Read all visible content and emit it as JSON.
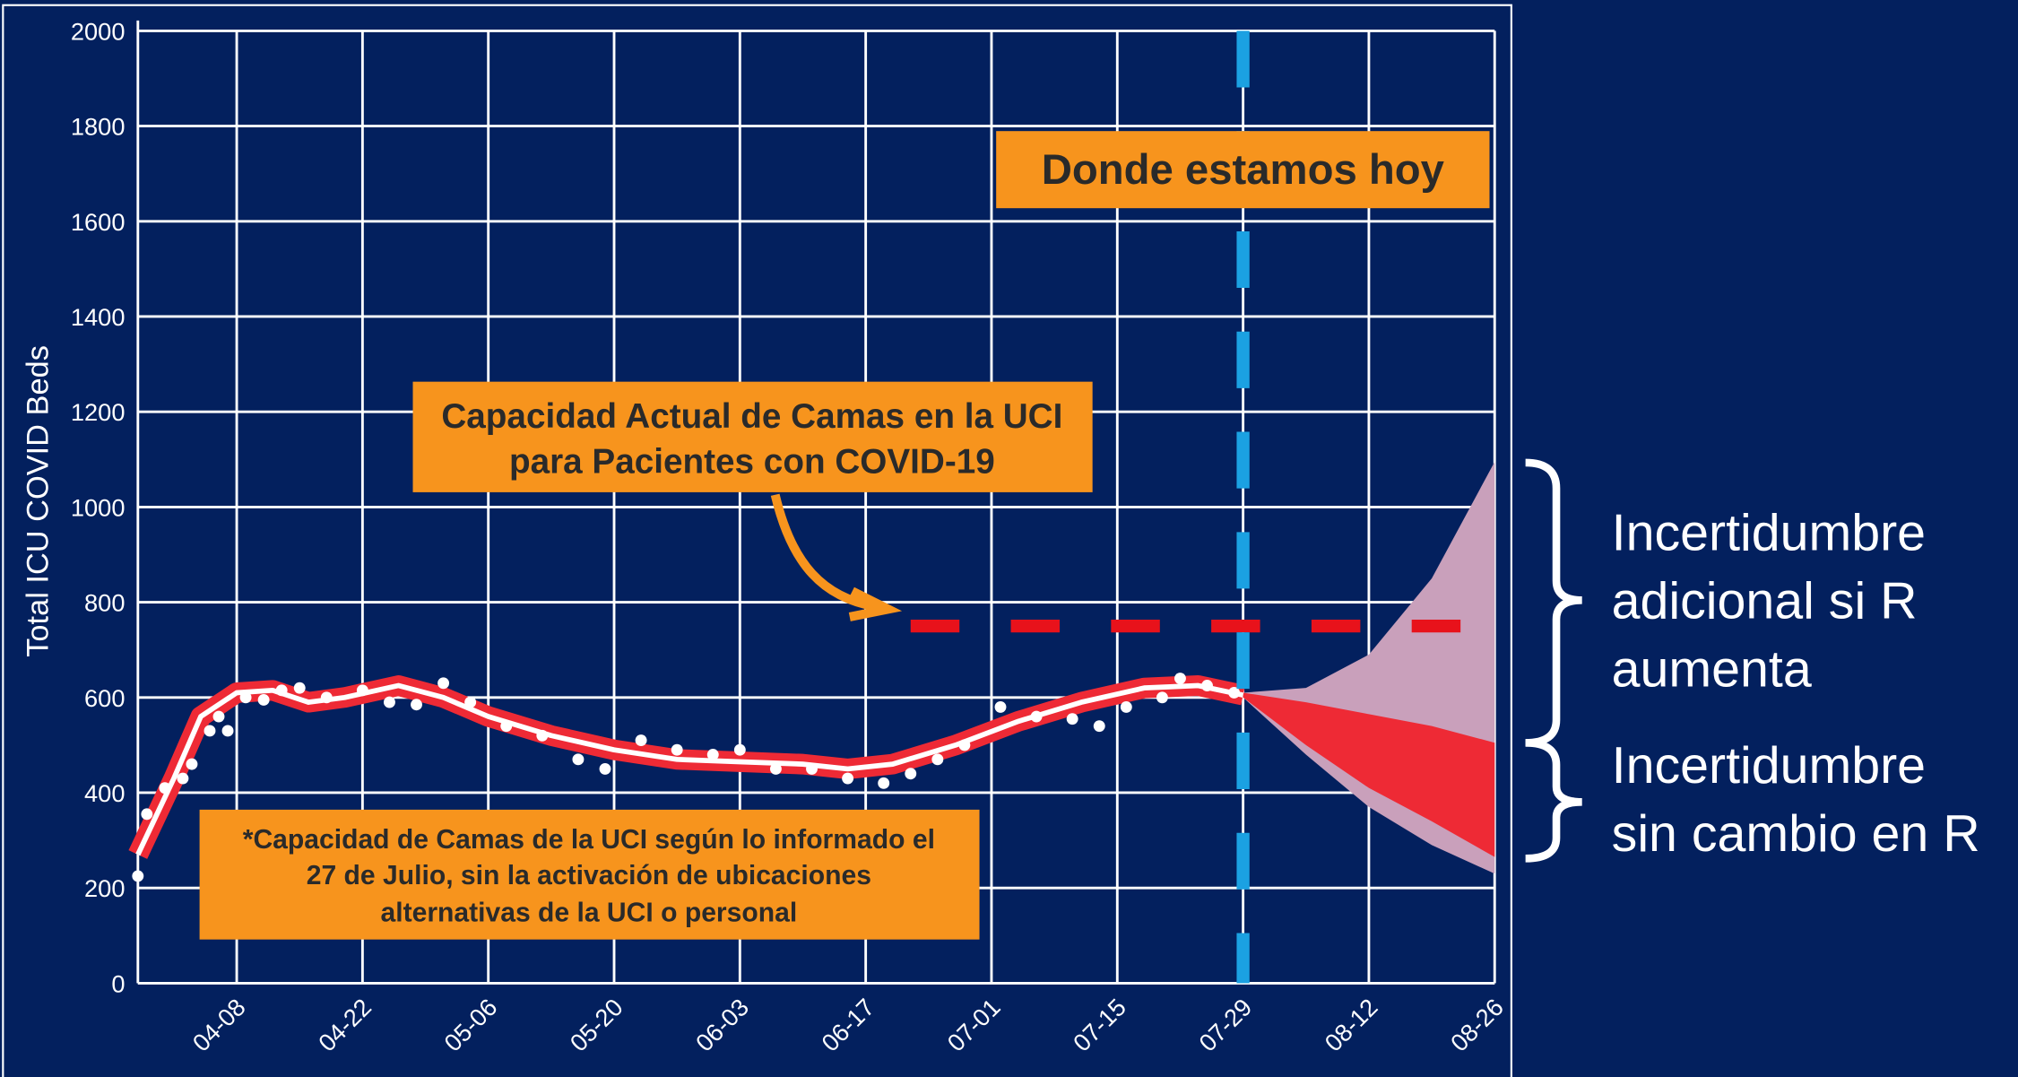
{
  "chart_data": {
    "type": "line",
    "y_label": "Total ICU COVID Beds",
    "xlim": [
      "03-28",
      "08-26"
    ],
    "xticks": [
      "04-08",
      "04-22",
      "05-06",
      "05-20",
      "06-03",
      "06-17",
      "07-01",
      "07-15",
      "07-29",
      "08-12",
      "08-26"
    ],
    "ylim": [
      0,
      2000
    ],
    "yticks": [
      0,
      200,
      400,
      600,
      800,
      1000,
      1200,
      1400,
      1600,
      1800,
      2000
    ],
    "grid": true,
    "series": [
      {
        "color": "#ffffff",
        "x": [
          "03-28",
          "04-01",
          "04-04",
          "04-08",
          "04-12",
          "04-16",
          "04-20",
          "04-26",
          "05-01",
          "05-06",
          "05-13",
          "05-20",
          "05-27",
          "06-03",
          "06-10",
          "06-15",
          "06-20",
          "06-27",
          "07-04",
          "07-11",
          "07-18",
          "07-24",
          "07-29"
        ],
        "values": [
          270,
          430,
          560,
          610,
          615,
          590,
          600,
          625,
          600,
          560,
          520,
          490,
          470,
          465,
          460,
          450,
          460,
          500,
          550,
          590,
          620,
          625,
          605
        ]
      }
    ],
    "scatter": {
      "color": "#ffffff",
      "x": [
        "03-28",
        "03-29",
        "03-31",
        "04-02",
        "04-03",
        "04-05",
        "04-06",
        "04-07",
        "04-09",
        "04-11",
        "04-13",
        "04-15",
        "04-18",
        "04-22",
        "04-25",
        "04-28",
        "05-01",
        "05-04",
        "05-08",
        "05-12",
        "05-16",
        "05-19",
        "05-23",
        "05-27",
        "05-31",
        "06-03",
        "06-07",
        "06-11",
        "06-15",
        "06-19",
        "06-22",
        "06-25",
        "06-28",
        "07-02",
        "07-06",
        "07-10",
        "07-13",
        "07-16",
        "07-20",
        "07-22",
        "07-25",
        "07-28"
      ],
      "values": [
        225,
        355,
        410,
        430,
        460,
        530,
        560,
        530,
        600,
        595,
        615,
        620,
        600,
        615,
        590,
        585,
        630,
        590,
        540,
        520,
        470,
        450,
        510,
        490,
        480,
        490,
        450,
        450,
        430,
        420,
        440,
        470,
        500,
        580,
        560,
        555,
        540,
        580,
        600,
        640,
        625,
        610
      ]
    },
    "bands": [
      {
        "color": "#c9a0bb",
        "x": [
          "07-29",
          "08-05",
          "08-12",
          "08-19",
          "08-26"
        ],
        "lower": [
          600,
          480,
          370,
          290,
          230
        ],
        "upper": [
          610,
          620,
          690,
          850,
          1095
        ]
      },
      {
        "color": "#ee2a35",
        "x": [
          "07-29",
          "08-05",
          "08-12",
          "08-19",
          "08-26"
        ],
        "lower": [
          600,
          500,
          410,
          340,
          265
        ],
        "upper": [
          610,
          590,
          565,
          540,
          505
        ]
      }
    ],
    "capacity": {
      "value": 750,
      "x": [
        "06-22",
        "08-24"
      ],
      "color": "#e8121b"
    },
    "today": {
      "x": "07-29",
      "color": "#1ba1e2"
    },
    "annotations": {
      "today_label": "Donde estamos hoy",
      "capacity_label": [
        "Capacidad Actual de Camas en la UCI",
        "para Pacientes con COVID-19"
      ],
      "footnote": [
        "*Capacidad de Camas de la UCI según lo informado el",
        "27 de Julio, sin la activación de ubicaciones",
        "alternativas de la UCI o personal"
      ],
      "upper_brace": [
        "Incertidumbre",
        "adicional si R",
        "aumenta"
      ],
      "lower_brace": [
        "Incertidumbre",
        "sin cambio en R"
      ]
    }
  }
}
